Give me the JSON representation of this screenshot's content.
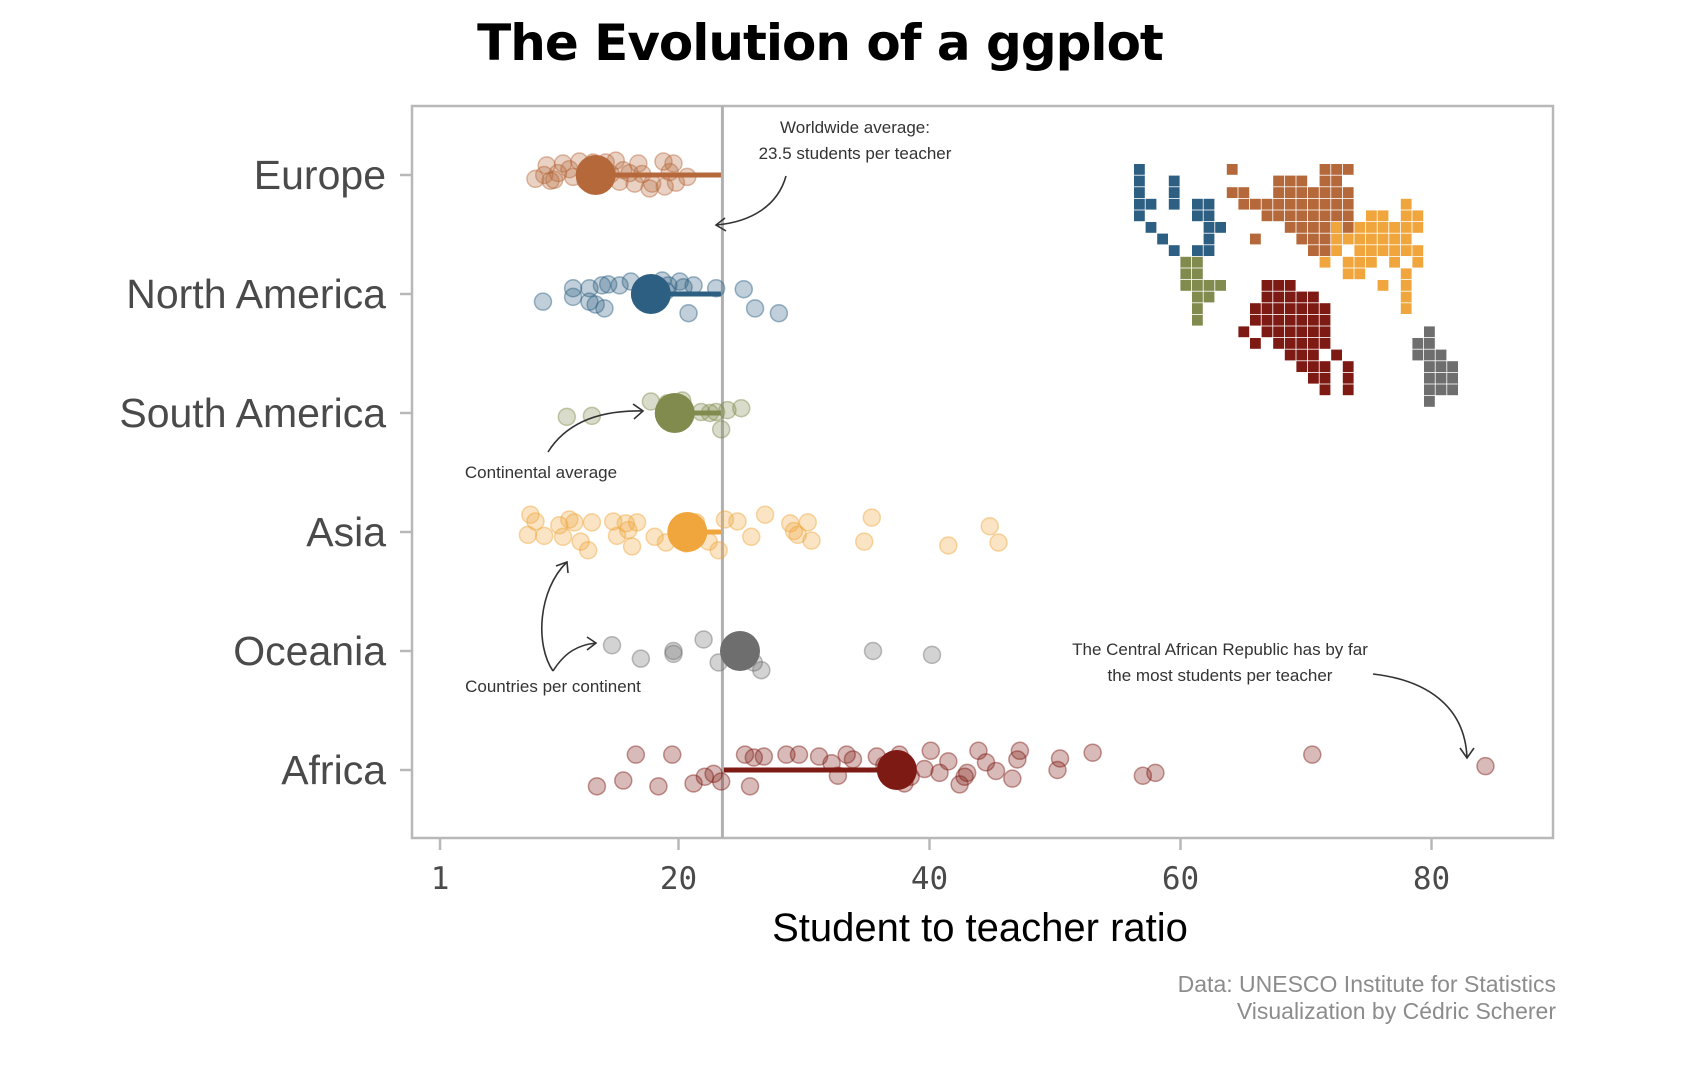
{
  "title": "The Evolution of a ggplot",
  "caption": {
    "line1": "Data: UNESCO Institute for Statistics",
    "line2": "Visualization by Cédric Scherer"
  },
  "colors": {
    "Europe": "#b5693b",
    "North America": "#2d5f82",
    "South America": "#818b4e",
    "Asia": "#f0a63c",
    "Oceania": "#6e6e6e",
    "Africa": "#7e1a14",
    "average_line": "#b0b0b0",
    "panel_border": "#b8b8b8"
  },
  "annotations": {
    "worldwide_1": "Worldwide average:",
    "worldwide_2": "23.5 students per teacher",
    "continental": "Continental average",
    "countries": "Countries per continent",
    "car_1": "The Central African Republic has by far",
    "car_2": "the most students per teacher"
  },
  "chart_data": {
    "type": "scatter",
    "title": "The Evolution of a ggplot",
    "xlabel": "Student to teacher ratio",
    "ylabel": "",
    "xlim": [
      0,
      90
    ],
    "x_ticks": [
      1,
      20,
      40,
      60,
      80
    ],
    "categories": [
      "Europe",
      "North America",
      "South America",
      "Asia",
      "Oceania",
      "Africa"
    ],
    "world_average": 23.5,
    "series": [
      {
        "name": "Europe",
        "average": 13.4,
        "points": [
          [
            9.5,
            0.1
          ],
          [
            10.8,
            0.12
          ],
          [
            12.1,
            0.14
          ],
          [
            13.2,
            0.13
          ],
          [
            14.2,
            0.13
          ],
          [
            15.0,
            0.15
          ],
          [
            16.8,
            0.12
          ],
          [
            18.8,
            0.14
          ],
          [
            19.6,
            0.12
          ],
          [
            11.3,
            0.06
          ],
          [
            12.7,
            0.04
          ],
          [
            15.6,
            0.05
          ],
          [
            19.3,
            0.03
          ],
          [
            9.3,
            0.0
          ],
          [
            10.4,
            0.02
          ],
          [
            11.6,
            -0.02
          ],
          [
            13.5,
            -0.02
          ],
          [
            14.6,
            0.01
          ],
          [
            16.1,
            0.02
          ],
          [
            17.1,
            0.01
          ],
          [
            8.6,
            -0.04
          ],
          [
            10.1,
            -0.05
          ],
          [
            12.6,
            -0.06
          ],
          [
            15.3,
            -0.07
          ],
          [
            17.9,
            -0.09
          ],
          [
            19.8,
            -0.08
          ],
          [
            20.7,
            -0.02
          ],
          [
            9.8,
            -0.06
          ],
          [
            16.5,
            -0.09
          ],
          [
            18.9,
            -0.12
          ],
          [
            17.7,
            -0.14
          ]
        ]
      },
      {
        "name": "North America",
        "average": 17.8,
        "points": [
          [
            9.2,
            -0.08
          ],
          [
            11.6,
            -0.03
          ],
          [
            11.6,
            0.06
          ],
          [
            12.9,
            0.06
          ],
          [
            13.4,
            -0.11
          ],
          [
            13.9,
            0.09
          ],
          [
            14.4,
            0.1
          ],
          [
            15.3,
            0.09
          ],
          [
            16.2,
            0.13
          ],
          [
            18.7,
            0.14
          ],
          [
            19.2,
            0.09
          ],
          [
            20.1,
            0.13
          ],
          [
            20.4,
            0.07
          ],
          [
            12.9,
            -0.08
          ],
          [
            14.1,
            -0.15
          ],
          [
            20.8,
            -0.2
          ],
          [
            21.2,
            0.09
          ],
          [
            23.0,
            0.06
          ],
          [
            25.2,
            0.05
          ],
          [
            26.1,
            -0.15
          ],
          [
            28.0,
            -0.2
          ],
          [
            19.0,
            0.03
          ]
        ]
      },
      {
        "name": "South America",
        "average": 19.7,
        "points": [
          [
            11.1,
            -0.04
          ],
          [
            13.1,
            -0.03
          ],
          [
            17.8,
            0.12
          ],
          [
            19.1,
            0.1
          ],
          [
            20.3,
            0.13
          ],
          [
            21.8,
            0.01
          ],
          [
            23.0,
            0.01
          ],
          [
            23.4,
            -0.17
          ],
          [
            23.9,
            0.03
          ],
          [
            25.0,
            0.05
          ],
          [
            22.5,
            0.0
          ],
          [
            20.4,
            -0.04
          ]
        ]
      },
      {
        "name": "Asia",
        "average": 20.7,
        "points": [
          [
            8.2,
            0.18
          ],
          [
            8.0,
            -0.03
          ],
          [
            8.6,
            0.11
          ],
          [
            9.3,
            -0.04
          ],
          [
            10.5,
            0.07
          ],
          [
            10.8,
            -0.05
          ],
          [
            11.3,
            0.13
          ],
          [
            11.7,
            0.1
          ],
          [
            12.2,
            -0.1
          ],
          [
            12.8,
            -0.19
          ],
          [
            13.1,
            0.1
          ],
          [
            14.8,
            0.11
          ],
          [
            15.1,
            -0.04
          ],
          [
            15.8,
            0.09
          ],
          [
            16.0,
            0.02
          ],
          [
            16.3,
            -0.15
          ],
          [
            16.7,
            0.1
          ],
          [
            18.1,
            -0.05
          ],
          [
            19.0,
            -0.11
          ],
          [
            20.3,
            0.0
          ],
          [
            20.6,
            -0.12
          ],
          [
            21.2,
            0.07
          ],
          [
            21.4,
            0.1
          ],
          [
            22.4,
            -0.1
          ],
          [
            23.2,
            -0.19
          ],
          [
            23.7,
            0.13
          ],
          [
            24.7,
            0.11
          ],
          [
            25.8,
            -0.05
          ],
          [
            26.9,
            0.18
          ],
          [
            28.9,
            0.09
          ],
          [
            29.2,
            0.01
          ],
          [
            29.5,
            -0.03
          ],
          [
            30.3,
            0.1
          ],
          [
            30.6,
            -0.09
          ],
          [
            34.8,
            -0.1
          ],
          [
            35.4,
            0.15
          ],
          [
            41.5,
            -0.14
          ],
          [
            44.8,
            0.06
          ],
          [
            45.5,
            -0.11
          ]
        ]
      },
      {
        "name": "Oceania",
        "average": 24.9,
        "points": [
          [
            14.7,
            0.06
          ],
          [
            17.0,
            -0.08
          ],
          [
            19.6,
            -0.03
          ],
          [
            19.6,
            0.0
          ],
          [
            22.0,
            0.12
          ],
          [
            23.2,
            -0.12
          ],
          [
            26.0,
            -0.12
          ],
          [
            26.6,
            -0.2
          ],
          [
            35.5,
            0.0
          ],
          [
            40.2,
            -0.04
          ]
        ]
      },
      {
        "name": "Africa",
        "average": 37.4,
        "points": [
          [
            13.5,
            -0.17
          ],
          [
            15.6,
            -0.11
          ],
          [
            16.6,
            0.16
          ],
          [
            18.4,
            -0.17
          ],
          [
            19.5,
            0.16
          ],
          [
            21.2,
            -0.14
          ],
          [
            22.1,
            -0.07
          ],
          [
            22.8,
            -0.04
          ],
          [
            23.4,
            -0.12
          ],
          [
            25.3,
            0.16
          ],
          [
            25.7,
            -0.17
          ],
          [
            26.0,
            0.13
          ],
          [
            26.8,
            0.14
          ],
          [
            28.6,
            0.16
          ],
          [
            29.6,
            0.16
          ],
          [
            31.2,
            0.14
          ],
          [
            32.2,
            0.07
          ],
          [
            32.7,
            -0.06
          ],
          [
            33.4,
            0.16
          ],
          [
            33.9,
            0.11
          ],
          [
            35.8,
            0.14
          ],
          [
            36.4,
            0.05
          ],
          [
            37.6,
            0.16
          ],
          [
            38.0,
            -0.14
          ],
          [
            38.5,
            -0.07
          ],
          [
            39.6,
            0.01
          ],
          [
            40.1,
            0.2
          ],
          [
            40.8,
            -0.03
          ],
          [
            41.5,
            0.09
          ],
          [
            42.4,
            -0.15
          ],
          [
            42.8,
            -0.07
          ],
          [
            43.0,
            -0.03
          ],
          [
            43.9,
            0.2
          ],
          [
            44.5,
            0.08
          ],
          [
            45.3,
            -0.01
          ],
          [
            46.6,
            -0.09
          ],
          [
            47.0,
            0.11
          ],
          [
            47.2,
            0.2
          ],
          [
            50.2,
            0.0
          ],
          [
            50.4,
            0.12
          ],
          [
            53.0,
            0.18
          ],
          [
            57.0,
            -0.06
          ],
          [
            58.0,
            -0.03
          ],
          [
            70.5,
            0.16
          ],
          [
            84.3,
            0.04
          ]
        ]
      }
    ]
  },
  "tile_map": {
    "Europe": [
      [
        8,
        0
      ],
      [
        16,
        0
      ],
      [
        17,
        0
      ],
      [
        18,
        0
      ],
      [
        12,
        1
      ],
      [
        13,
        1
      ],
      [
        14,
        1
      ],
      [
        16,
        1
      ],
      [
        17,
        1
      ],
      [
        8,
        2
      ],
      [
        9,
        2
      ],
      [
        12,
        2
      ],
      [
        13,
        2
      ],
      [
        14,
        2
      ],
      [
        15,
        2
      ],
      [
        16,
        2
      ],
      [
        17,
        2
      ],
      [
        18,
        2
      ],
      [
        9,
        3
      ],
      [
        10,
        3
      ],
      [
        11,
        3
      ],
      [
        12,
        3
      ],
      [
        13,
        3
      ],
      [
        14,
        3
      ],
      [
        15,
        3
      ],
      [
        16,
        3
      ],
      [
        17,
        3
      ],
      [
        18,
        3
      ],
      [
        11,
        4
      ],
      [
        12,
        4
      ],
      [
        13,
        4
      ],
      [
        14,
        4
      ],
      [
        15,
        4
      ],
      [
        16,
        4
      ],
      [
        17,
        4
      ],
      [
        18,
        4
      ],
      [
        13,
        5
      ],
      [
        14,
        5
      ],
      [
        15,
        5
      ],
      [
        16,
        5
      ],
      [
        17,
        5
      ],
      [
        18,
        5
      ],
      [
        10,
        6
      ],
      [
        14,
        6
      ],
      [
        15,
        6
      ],
      [
        16,
        6
      ],
      [
        15,
        7
      ],
      [
        16,
        7
      ]
    ],
    "Asia": [
      [
        23,
        3
      ],
      [
        23,
        4
      ],
      [
        19,
        5
      ],
      [
        20,
        5
      ],
      [
        21,
        5
      ],
      [
        22,
        5
      ],
      [
        23,
        5
      ],
      [
        24,
        5
      ],
      [
        17,
        5
      ],
      [
        18,
        6
      ],
      [
        19,
        6
      ],
      [
        20,
        6
      ],
      [
        21,
        6
      ],
      [
        22,
        6
      ],
      [
        23,
        6
      ],
      [
        20,
        4
      ],
      [
        21,
        4
      ],
      [
        24,
        4
      ],
      [
        19,
        7
      ],
      [
        20,
        7
      ],
      [
        21,
        7
      ],
      [
        22,
        7
      ],
      [
        23,
        7
      ],
      [
        24,
        7
      ],
      [
        18,
        8
      ],
      [
        19,
        8
      ],
      [
        20,
        8
      ],
      [
        22,
        8
      ],
      [
        24,
        8
      ],
      [
        18,
        9
      ],
      [
        19,
        9
      ],
      [
        23,
        9
      ],
      [
        21,
        10
      ],
      [
        23,
        10
      ],
      [
        23,
        11
      ],
      [
        23,
        12
      ],
      [
        16,
        8
      ],
      [
        17,
        6
      ],
      [
        17,
        7
      ]
    ],
    "North America": [
      [
        0,
        0
      ],
      [
        0,
        1
      ],
      [
        3,
        1
      ],
      [
        0,
        2
      ],
      [
        3,
        2
      ],
      [
        0,
        3
      ],
      [
        1,
        3
      ],
      [
        3,
        3
      ],
      [
        5,
        3
      ],
      [
        6,
        3
      ],
      [
        0,
        4
      ],
      [
        5,
        4
      ],
      [
        6,
        4
      ],
      [
        1,
        5
      ],
      [
        6,
        5
      ],
      [
        7,
        5
      ],
      [
        2,
        6
      ],
      [
        6,
        6
      ],
      [
        3,
        7
      ],
      [
        5,
        7
      ],
      [
        6,
        7
      ]
    ],
    "South America": [
      [
        4,
        8
      ],
      [
        5,
        8
      ],
      [
        4,
        9
      ],
      [
        5,
        9
      ],
      [
        4,
        10
      ],
      [
        5,
        10
      ],
      [
        6,
        10
      ],
      [
        7,
        10
      ],
      [
        5,
        11
      ],
      [
        6,
        11
      ],
      [
        5,
        12
      ],
      [
        5,
        13
      ]
    ],
    "Africa": [
      [
        11,
        10
      ],
      [
        12,
        10
      ],
      [
        13,
        10
      ],
      [
        11,
        11
      ],
      [
        12,
        11
      ],
      [
        13,
        11
      ],
      [
        14,
        11
      ],
      [
        15,
        11
      ],
      [
        10,
        12
      ],
      [
        11,
        12
      ],
      [
        12,
        12
      ],
      [
        13,
        12
      ],
      [
        14,
        12
      ],
      [
        15,
        12
      ],
      [
        16,
        12
      ],
      [
        10,
        13
      ],
      [
        11,
        13
      ],
      [
        12,
        13
      ],
      [
        13,
        13
      ],
      [
        14,
        13
      ],
      [
        15,
        13
      ],
      [
        16,
        13
      ],
      [
        9,
        14
      ],
      [
        11,
        14
      ],
      [
        12,
        14
      ],
      [
        13,
        14
      ],
      [
        14,
        14
      ],
      [
        15,
        14
      ],
      [
        16,
        14
      ],
      [
        10,
        15
      ],
      [
        12,
        15
      ],
      [
        13,
        15
      ],
      [
        14,
        15
      ],
      [
        15,
        15
      ],
      [
        16,
        15
      ],
      [
        13,
        16
      ],
      [
        14,
        16
      ],
      [
        15,
        16
      ],
      [
        17,
        16
      ],
      [
        14,
        17
      ],
      [
        15,
        17
      ],
      [
        16,
        17
      ],
      [
        18,
        17
      ],
      [
        15,
        18
      ],
      [
        16,
        18
      ],
      [
        18,
        18
      ],
      [
        16,
        19
      ],
      [
        18,
        19
      ]
    ],
    "Oceania": [
      [
        25,
        14
      ],
      [
        24,
        15
      ],
      [
        25,
        15
      ],
      [
        24,
        16
      ],
      [
        25,
        16
      ],
      [
        26,
        16
      ],
      [
        25,
        17
      ],
      [
        26,
        17
      ],
      [
        27,
        17
      ],
      [
        25,
        18
      ],
      [
        26,
        18
      ],
      [
        27,
        18
      ],
      [
        25,
        19
      ],
      [
        26,
        19
      ],
      [
        27,
        19
      ],
      [
        25,
        20
      ]
    ]
  }
}
